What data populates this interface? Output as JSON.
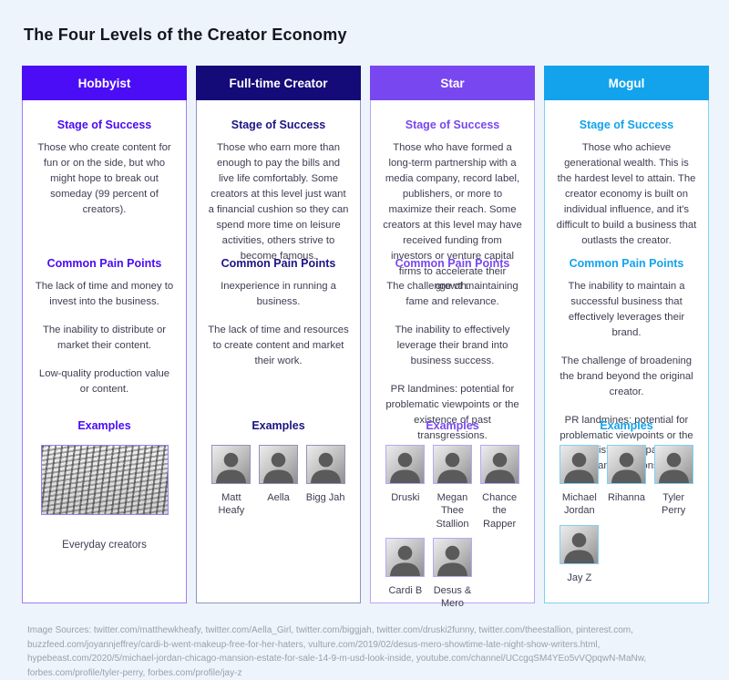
{
  "title": "The Four Levels of the Creator Economy",
  "section_titles": {
    "stage": "Stage of Success",
    "pain": "Common Pain Points",
    "examples": "Examples"
  },
  "columns": [
    {
      "name": "Hobbyist",
      "colors": {
        "header_bg": "#4a0df5",
        "accent": "#4a0df5",
        "border": "#9c7ff5"
      },
      "stage_text": "Those who create content for fun or on the side, but who might hope to break out someday (99 percent of creators).",
      "pain_points": [
        "The lack of time and money to invest into the business.",
        "The inability to distribute or market their content.",
        "Low-quality production value or content."
      ],
      "examples": [
        {
          "label": "Everyday creators",
          "photo": "crowd"
        }
      ]
    },
    {
      "name": "Full-time Creator",
      "colors": {
        "header_bg": "#140a78",
        "accent": "#1c1582",
        "border": "#9193bd"
      },
      "stage_text": "Those who earn more than enough to pay the bills and live life comfortably. Some creators at this level just want a financial cushion so they can spend more time on leisure activities, others strive to become famous.",
      "pain_points": [
        "Inexperience in running a business.",
        "The lack of time and resources to create content and market their work."
      ],
      "examples": [
        {
          "label": "Matt Heafy",
          "photo": "portrait"
        },
        {
          "label": "Aella",
          "photo": "portrait"
        },
        {
          "label": "Bigg Jah",
          "photo": "portrait"
        }
      ]
    },
    {
      "name": "Star",
      "colors": {
        "header_bg": "#7847f0",
        "accent": "#7847f0",
        "border": "#b9a6f8"
      },
      "stage_text": "Those who have formed a long-term partnership with a media company, record label, publishers, or more to maximize their reach. Some creators at this level may have received funding from investors or venture capital firms to accelerate their growth.",
      "pain_points": [
        "The challenge of maintaining fame and relevance.",
        "The inability to effectively leverage their brand into business success.",
        "PR landmines: potential for problematic viewpoints or the existence of past transgressions."
      ],
      "examples": [
        {
          "label": "Druski",
          "photo": "portrait"
        },
        {
          "label": "Megan Thee Stallion",
          "photo": "portrait"
        },
        {
          "label": "Chance the Rapper",
          "photo": "portrait"
        },
        {
          "label": "Cardi B",
          "photo": "portrait"
        },
        {
          "label": "Desus & Mero",
          "photo": "portrait"
        }
      ]
    },
    {
      "name": "Mogul",
      "colors": {
        "header_bg": "#12a3ec",
        "accent": "#12a3ec",
        "border": "#7fd0f5"
      },
      "stage_text": "Those who achieve generational wealth. This is the hardest level to attain. The creator economy is built on individual influence, and it's difficult to build a business that outlasts the creator.",
      "pain_points": [
        "The inability to maintain a successful business that effectively leverages their brand.",
        "The challenge of broadening the brand beyond the original creator.",
        "PR landmines: potential for problematic viewpoints or the existence of past transgressions."
      ],
      "examples": [
        {
          "label": "Michael Jordan",
          "photo": "portrait"
        },
        {
          "label": "Rihanna",
          "photo": "portrait"
        },
        {
          "label": "Tyler Perry",
          "photo": "portrait"
        },
        {
          "label": "Jay Z",
          "photo": "portrait"
        }
      ]
    }
  ],
  "footer": "Image Sources: twitter.com/matthewkheafy, twitter.com/Aella_Girl, twitter.com/biggjah, twitter.com/druski2funny, twitter.com/theestallion, pinterest.com, buzzfeed.com/joyannjeffrey/cardi-b-went-makeup-free-for-her-haters, vulture.com/2019/02/desus-mero-showtime-late-night-show-writers.html, hypebeast.com/2020/5/michael-jordan-chicago-mansion-estate-for-sale-14-9-m-usd-look-inside, youtube.com/channel/UCcgqSM4YEo5vVQpqwN-MaNw, forbes.com/profile/tyler-perry, forbes.com/profile/jay-z"
}
